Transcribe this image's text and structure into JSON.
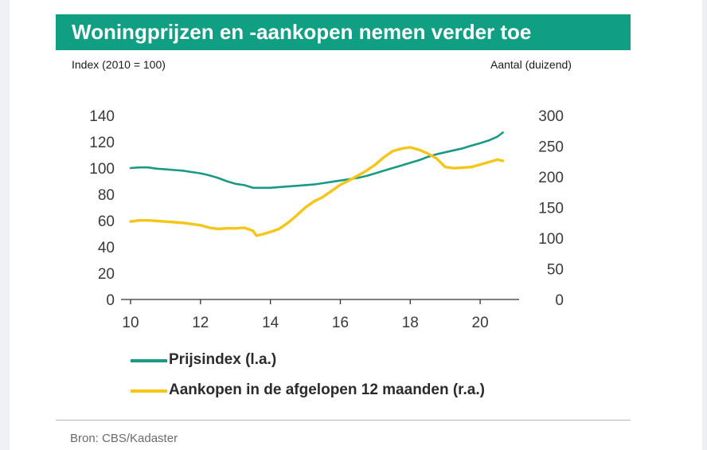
{
  "title": "Woningprijzen en -aankopen nemen verder toe",
  "left_axis_caption": "Index (2010 = 100)",
  "right_axis_caption": "Aantal (duizend)",
  "source": "Bron: CBS/Kadaster",
  "colors": {
    "title_background": "#119f84",
    "prijsindex": "#1a9a84",
    "aankopen": "#f5c518",
    "axis": "#333333"
  },
  "chart_data": {
    "type": "line",
    "x_ticks": [
      "10",
      "12",
      "14",
      "16",
      "18",
      "20"
    ],
    "xlim": [
      10,
      21
    ],
    "left_axis": {
      "ticks": [
        "140",
        "120",
        "100",
        "80",
        "60",
        "40",
        "20",
        "0"
      ],
      "ylim": [
        0,
        140
      ]
    },
    "right_axis": {
      "ticks": [
        "300",
        "250",
        "200",
        "150",
        "100",
        "50",
        "0"
      ],
      "ylim": [
        0,
        300
      ]
    },
    "grid": false,
    "legend_position": "bottom",
    "series": [
      {
        "name": "Prijsindex (l.a.)",
        "axis": "left",
        "x": [
          10.0,
          10.25,
          10.5,
          10.75,
          11.0,
          11.25,
          11.5,
          11.75,
          12.0,
          12.25,
          12.5,
          12.75,
          13.0,
          13.25,
          13.5,
          13.75,
          14.0,
          14.25,
          14.5,
          14.75,
          15.0,
          15.25,
          15.5,
          15.75,
          16.0,
          16.25,
          16.5,
          16.75,
          17.0,
          17.25,
          17.5,
          17.75,
          18.0,
          18.25,
          18.5,
          18.75,
          19.0,
          19.25,
          19.5,
          19.75,
          20.0,
          20.25,
          20.5,
          20.65
        ],
        "y": [
          100,
          100.5,
          100.5,
          99.5,
          99,
          98.5,
          98,
          97,
          96,
          94.5,
          92.5,
          90,
          88,
          87,
          85,
          85,
          85,
          85.5,
          86,
          86.5,
          87,
          87.5,
          88.5,
          89.5,
          90.5,
          91.5,
          92.5,
          94,
          96,
          98,
          100,
          102,
          104,
          106,
          108.5,
          110.5,
          112,
          113.5,
          115,
          117,
          119,
          121,
          124,
          127
        ]
      },
      {
        "name": "Aankopen in de afgelopen 12 maanden (r.a.)",
        "axis": "right",
        "x": [
          10.0,
          10.25,
          10.5,
          10.75,
          11.0,
          11.25,
          11.5,
          11.75,
          12.0,
          12.25,
          12.5,
          12.75,
          13.0,
          13.25,
          13.5,
          13.6,
          13.75,
          14.0,
          14.25,
          14.5,
          14.75,
          15.0,
          15.25,
          15.5,
          15.75,
          16.0,
          16.25,
          16.5,
          16.75,
          17.0,
          17.25,
          17.5,
          17.75,
          18.0,
          18.25,
          18.5,
          18.75,
          19.0,
          19.25,
          19.5,
          19.75,
          20.0,
          20.25,
          20.5,
          20.65
        ],
        "y": [
          127,
          129,
          129,
          128,
          127,
          126,
          125,
          123,
          121,
          117,
          115,
          116,
          116,
          117,
          112,
          104,
          106,
          110,
          115,
          125,
          137,
          150,
          160,
          167,
          177,
          187,
          194,
          202,
          210,
          220,
          232,
          242,
          246,
          248,
          244,
          238,
          230,
          216,
          214,
          215,
          216,
          220,
          224,
          228,
          226
        ]
      }
    ]
  }
}
